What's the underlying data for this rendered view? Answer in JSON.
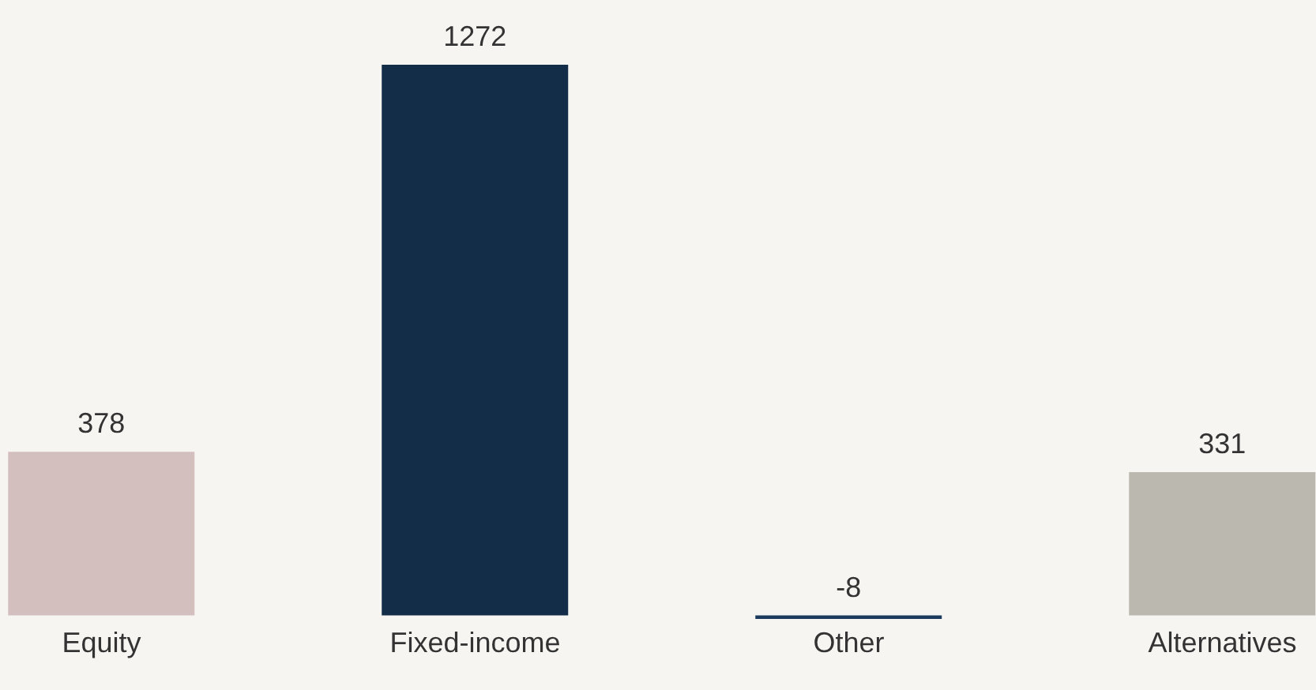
{
  "chart_data": {
    "type": "bar",
    "categories": [
      "Equity",
      "Fixed-income",
      "Other",
      "Alternatives"
    ],
    "values": [
      378,
      1272,
      -8,
      331
    ],
    "colors": [
      "#d4bfbf",
      "#132d48",
      "#1b3a5c",
      "#bbb8b0"
    ],
    "data_labels": true
  }
}
